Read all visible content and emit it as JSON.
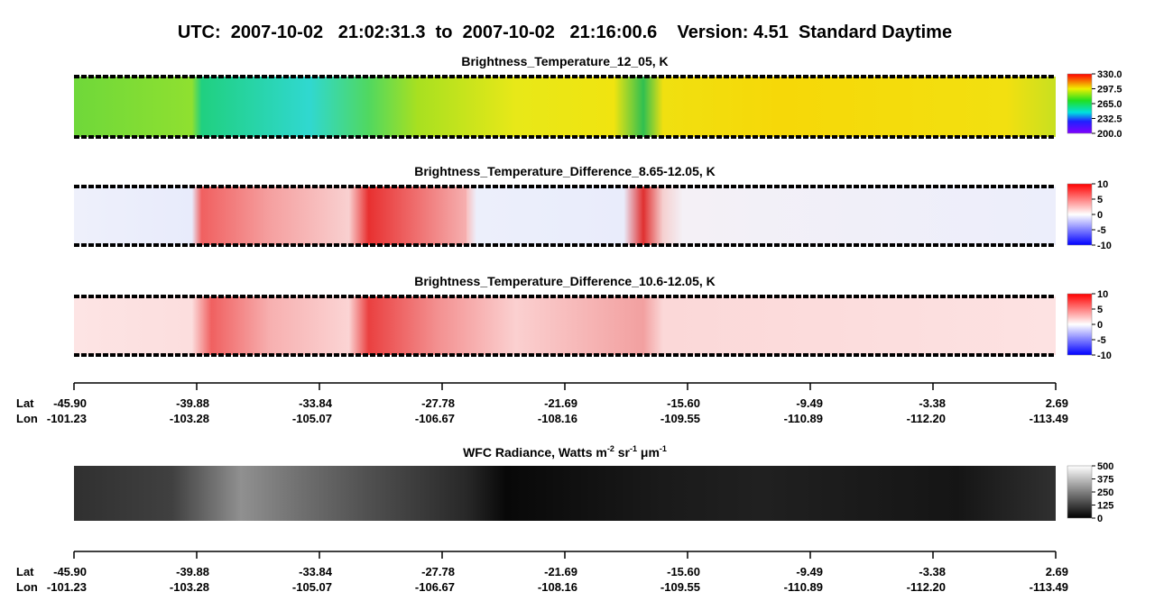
{
  "title": "UTC:  2007-10-02   21:02:31.3  to  2007-10-02   21:16:00.6    Version: 4.51  Standard Daytime",
  "panels": [
    {
      "title": "Brightness_Temperature_12_05, K",
      "colorbar_ticks": [
        "330.0",
        "297.5",
        "265.0",
        "232.5",
        "200.0"
      ]
    },
    {
      "title": "Brightness_Temperature_Difference_8.65-12.05, K",
      "colorbar_ticks": [
        "10",
        "5",
        "0",
        "-5",
        "-10"
      ]
    },
    {
      "title": "Brightness_Temperature_Difference_10.6-12.05, K",
      "colorbar_ticks": [
        "10",
        "5",
        "0",
        "-5",
        "-10"
      ]
    }
  ],
  "radiance_panel": {
    "title_parts": [
      "WFC Radiance, Watts m",
      "-2",
      " sr",
      "-1",
      " μm",
      "-1"
    ],
    "colorbar_ticks": [
      "500",
      "375",
      "250",
      "125",
      "0"
    ]
  },
  "axes": [
    {
      "lat_label": "Lat",
      "lon_label": "Lon",
      "lat": [
        "-45.90",
        "-39.88",
        "-33.84",
        "-27.78",
        "-21.69",
        "-15.60",
        "-9.49",
        "-3.38",
        "2.69"
      ],
      "lon": [
        "-101.23",
        "-103.28",
        "-105.07",
        "-106.67",
        "-108.16",
        "-109.55",
        "-110.89",
        "-112.20",
        "-113.49"
      ]
    },
    {
      "lat_label": "Lat",
      "lon_label": "Lon",
      "lat": [
        "-45.90",
        "-39.88",
        "-33.84",
        "-27.78",
        "-21.69",
        "-15.60",
        "-9.49",
        "-3.38",
        "2.69"
      ],
      "lon": [
        "-101.23",
        "-103.28",
        "-105.07",
        "-106.67",
        "-108.16",
        "-109.55",
        "-110.89",
        "-112.20",
        "-113.49"
      ]
    }
  ]
}
